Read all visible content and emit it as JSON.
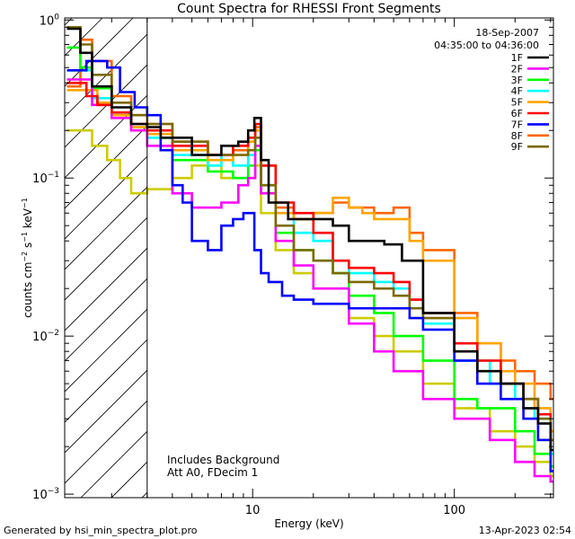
{
  "chart_data": {
    "type": "line",
    "title": "Count Spectra for RHESSI Front Segments",
    "xlabel": "Energy (keV)",
    "ylabel_parts": {
      "counts": "counts cm",
      "exp_cm": "−2",
      "s": " s",
      "exp_s": "−1",
      "kev": " keV",
      "exp_kev": "−1"
    },
    "xscale": "log",
    "yscale": "log",
    "xlim": [
      1.17,
      310
    ],
    "ylim": [
      0.00095,
      1.03
    ],
    "x_ticks": [
      {
        "value": 10,
        "label": "10"
      },
      {
        "value": 100,
        "label": "100"
      }
    ],
    "y_ticks": [
      {
        "value": 1,
        "base": "10",
        "exp": "0"
      },
      {
        "value": 0.1,
        "base": "10",
        "exp": "−1"
      },
      {
        "value": 0.01,
        "base": "10",
        "exp": "−2"
      },
      {
        "value": 0.001,
        "base": "10",
        "exp": "−3"
      }
    ],
    "date": "18-Sep-2007",
    "time_range": "04:35:00 to 04:36:00",
    "annotation_lines": [
      "Includes Background",
      "Att A0, FDecim 1"
    ],
    "excluded_region": {
      "xmin": 1.17,
      "xmax": 3.0,
      "style": "hatched"
    },
    "legend_position": "top-right",
    "series": [
      {
        "name": "1F",
        "color": "#000000",
        "points": [
          [
            1.2,
            0.88
          ],
          [
            1.35,
            0.88
          ],
          [
            1.4,
            0.62
          ],
          [
            1.6,
            0.38
          ],
          [
            2.0,
            0.28
          ],
          [
            2.5,
            0.22
          ],
          [
            3.0,
            0.21
          ],
          [
            3.5,
            0.18
          ],
          [
            5,
            0.14
          ],
          [
            7,
            0.16
          ],
          [
            8.5,
            0.17
          ],
          [
            9.5,
            0.2
          ],
          [
            10.2,
            0.24
          ],
          [
            11,
            0.13
          ],
          [
            12,
            0.07
          ],
          [
            15,
            0.055
          ],
          [
            20,
            0.055
          ],
          [
            25,
            0.05
          ],
          [
            30,
            0.04
          ],
          [
            40,
            0.04
          ],
          [
            45,
            0.038
          ],
          [
            55,
            0.03
          ],
          [
            70,
            0.014
          ],
          [
            100,
            0.008
          ],
          [
            130,
            0.006
          ],
          [
            170,
            0.005
          ],
          [
            220,
            0.0035
          ],
          [
            260,
            0.0028
          ],
          [
            300,
            0.0019
          ]
        ]
      },
      {
        "name": "2F",
        "color": "#ff00ff",
        "points": [
          [
            1.2,
            0.42
          ],
          [
            1.5,
            0.42
          ],
          [
            1.6,
            0.29
          ],
          [
            2.0,
            0.24
          ],
          [
            2.5,
            0.2
          ],
          [
            3.0,
            0.16
          ],
          [
            4,
            0.08
          ],
          [
            5,
            0.065
          ],
          [
            7,
            0.07
          ],
          [
            8.5,
            0.09
          ],
          [
            9.5,
            0.1
          ],
          [
            10.3,
            0.16
          ],
          [
            11,
            0.08
          ],
          [
            13,
            0.04
          ],
          [
            16,
            0.028
          ],
          [
            20,
            0.02
          ],
          [
            30,
            0.012
          ],
          [
            40,
            0.008
          ],
          [
            50,
            0.006
          ],
          [
            70,
            0.004
          ],
          [
            100,
            0.003
          ],
          [
            150,
            0.0022
          ],
          [
            200,
            0.0016
          ],
          [
            250,
            0.0013
          ],
          [
            300,
            0.0012
          ]
        ]
      },
      {
        "name": "3F",
        "color": "#00ff00",
        "points": [
          [
            1.2,
            0.67
          ],
          [
            1.35,
            0.67
          ],
          [
            1.4,
            0.5
          ],
          [
            1.6,
            0.37
          ],
          [
            2.0,
            0.25
          ],
          [
            2.5,
            0.2
          ],
          [
            3.0,
            0.18
          ],
          [
            4,
            0.13
          ],
          [
            6,
            0.11
          ],
          [
            8,
            0.1
          ],
          [
            9.5,
            0.12
          ],
          [
            10.3,
            0.15
          ],
          [
            11,
            0.08
          ],
          [
            13,
            0.045
          ],
          [
            16,
            0.035
          ],
          [
            20,
            0.03
          ],
          [
            25,
            0.025
          ],
          [
            30,
            0.018
          ],
          [
            40,
            0.014
          ],
          [
            50,
            0.01
          ],
          [
            70,
            0.007
          ],
          [
            100,
            0.004
          ],
          [
            130,
            0.0035
          ],
          [
            200,
            0.0025
          ],
          [
            250,
            0.0018
          ],
          [
            300,
            0.0015
          ]
        ]
      },
      {
        "name": "4F",
        "color": "#00ffff",
        "points": [
          [
            1.2,
            0.48
          ],
          [
            1.5,
            0.48
          ],
          [
            1.6,
            0.32
          ],
          [
            2.0,
            0.25
          ],
          [
            2.5,
            0.21
          ],
          [
            3.0,
            0.18
          ],
          [
            4,
            0.14
          ],
          [
            6,
            0.12
          ],
          [
            7,
            0.14
          ],
          [
            8,
            0.12
          ],
          [
            9.5,
            0.14
          ],
          [
            10.3,
            0.18
          ],
          [
            11,
            0.09
          ],
          [
            13,
            0.06
          ],
          [
            16,
            0.045
          ],
          [
            20,
            0.04
          ],
          [
            25,
            0.03
          ],
          [
            30,
            0.025
          ],
          [
            40,
            0.022
          ],
          [
            50,
            0.02
          ],
          [
            60,
            0.015
          ],
          [
            70,
            0.012
          ],
          [
            100,
            0.007
          ],
          [
            150,
            0.005
          ],
          [
            200,
            0.004
          ],
          [
            250,
            0.003
          ],
          [
            300,
            0.0018
          ]
        ]
      },
      {
        "name": "5F",
        "color": "#ffa500",
        "points": [
          [
            1.2,
            0.36
          ],
          [
            1.6,
            0.36
          ],
          [
            1.7,
            0.3
          ],
          [
            2.0,
            0.25
          ],
          [
            2.5,
            0.21
          ],
          [
            3.0,
            0.19
          ],
          [
            4,
            0.15
          ],
          [
            6,
            0.13
          ],
          [
            8,
            0.14
          ],
          [
            9.5,
            0.17
          ],
          [
            10.3,
            0.2
          ],
          [
            11,
            0.12
          ],
          [
            13,
            0.06
          ],
          [
            16,
            0.055
          ],
          [
            20,
            0.06
          ],
          [
            25,
            0.075
          ],
          [
            30,
            0.065
          ],
          [
            35,
            0.06
          ],
          [
            40,
            0.055
          ],
          [
            50,
            0.055
          ],
          [
            60,
            0.04
          ],
          [
            70,
            0.03
          ],
          [
            100,
            0.013
          ],
          [
            130,
            0.009
          ],
          [
            170,
            0.006
          ],
          [
            200,
            0.005
          ],
          [
            250,
            0.0035
          ],
          [
            300,
            0.0025
          ]
        ]
      },
      {
        "name": "6F",
        "color": "#ff0000",
        "points": [
          [
            1.2,
            0.4
          ],
          [
            1.4,
            0.4
          ],
          [
            1.5,
            0.33
          ],
          [
            1.7,
            0.29
          ],
          [
            2.0,
            0.26
          ],
          [
            2.5,
            0.22
          ],
          [
            3.0,
            0.2
          ],
          [
            4,
            0.16
          ],
          [
            6,
            0.14
          ],
          [
            8,
            0.16
          ],
          [
            9.5,
            0.18
          ],
          [
            10.3,
            0.22
          ],
          [
            11,
            0.12
          ],
          [
            13,
            0.07
          ],
          [
            16,
            0.06
          ],
          [
            20,
            0.045
          ],
          [
            25,
            0.03
          ],
          [
            30,
            0.027
          ],
          [
            40,
            0.025
          ],
          [
            50,
            0.022
          ],
          [
            60,
            0.017
          ],
          [
            70,
            0.014
          ],
          [
            100,
            0.009
          ],
          [
            130,
            0.007
          ],
          [
            170,
            0.005
          ],
          [
            220,
            0.004
          ],
          [
            260,
            0.0032
          ],
          [
            300,
            0.0022
          ]
        ]
      },
      {
        "name": "7F",
        "color": "#0000ff",
        "points": [
          [
            1.2,
            0.48
          ],
          [
            1.4,
            0.48
          ],
          [
            1.5,
            0.55
          ],
          [
            1.9,
            0.5
          ],
          [
            2.2,
            0.35
          ],
          [
            2.6,
            0.28
          ],
          [
            3.0,
            0.25
          ],
          [
            3.5,
            0.15
          ],
          [
            4,
            0.09
          ],
          [
            4.5,
            0.07
          ],
          [
            5,
            0.04
          ],
          [
            6,
            0.035
          ],
          [
            7,
            0.05
          ],
          [
            8,
            0.055
          ],
          [
            9,
            0.06
          ],
          [
            10.2,
            0.035
          ],
          [
            11,
            0.025
          ],
          [
            12,
            0.022
          ],
          [
            14,
            0.018
          ],
          [
            16,
            0.017
          ],
          [
            20,
            0.016
          ],
          [
            25,
            0.016
          ],
          [
            30,
            0.015
          ],
          [
            40,
            0.015
          ],
          [
            50,
            0.015
          ],
          [
            60,
            0.013
          ],
          [
            70,
            0.011
          ],
          [
            100,
            0.007
          ],
          [
            130,
            0.005
          ],
          [
            170,
            0.004
          ],
          [
            220,
            0.003
          ],
          [
            260,
            0.0022
          ],
          [
            300,
            0.0014
          ]
        ]
      },
      {
        "name": "8F",
        "color": "#ff6600",
        "points": [
          [
            1.2,
            0.38
          ],
          [
            1.35,
            0.38
          ],
          [
            1.4,
            0.75
          ],
          [
            1.6,
            0.55
          ],
          [
            2.0,
            0.33
          ],
          [
            2.5,
            0.25
          ],
          [
            3.0,
            0.22
          ],
          [
            4,
            0.17
          ],
          [
            6,
            0.14
          ],
          [
            8,
            0.15
          ],
          [
            9.5,
            0.17
          ],
          [
            10.3,
            0.21
          ],
          [
            11,
            0.12
          ],
          [
            13,
            0.065
          ],
          [
            16,
            0.055
          ],
          [
            20,
            0.06
          ],
          [
            25,
            0.07
          ],
          [
            30,
            0.065
          ],
          [
            40,
            0.06
          ],
          [
            50,
            0.065
          ],
          [
            60,
            0.045
          ],
          [
            70,
            0.035
          ],
          [
            100,
            0.014
          ],
          [
            130,
            0.009
          ],
          [
            170,
            0.007
          ],
          [
            200,
            0.006
          ],
          [
            250,
            0.005
          ],
          [
            300,
            0.004
          ]
        ]
      },
      {
        "name": "9F",
        "color": "#7a6a00",
        "points": [
          [
            1.2,
            0.9
          ],
          [
            1.35,
            0.9
          ],
          [
            1.4,
            0.7
          ],
          [
            1.6,
            0.45
          ],
          [
            2.0,
            0.3
          ],
          [
            2.5,
            0.25
          ],
          [
            3.0,
            0.22
          ],
          [
            4,
            0.17
          ],
          [
            6,
            0.14
          ],
          [
            8,
            0.14
          ],
          [
            9.5,
            0.15
          ],
          [
            10.3,
            0.18
          ],
          [
            11,
            0.09
          ],
          [
            13,
            0.05
          ],
          [
            16,
            0.035
          ],
          [
            20,
            0.03
          ],
          [
            25,
            0.025
          ],
          [
            30,
            0.022
          ],
          [
            40,
            0.02
          ],
          [
            50,
            0.018
          ],
          [
            60,
            0.015
          ],
          [
            70,
            0.013
          ],
          [
            100,
            0.008
          ],
          [
            130,
            0.006
          ],
          [
            170,
            0.005
          ],
          [
            220,
            0.004
          ],
          [
            260,
            0.003
          ],
          [
            300,
            0.0022
          ]
        ]
      },
      {
        "name": "",
        "color": "#cccc00",
        "points": [
          [
            1.2,
            0.2
          ],
          [
            1.5,
            0.2
          ],
          [
            1.6,
            0.16
          ],
          [
            1.9,
            0.13
          ],
          [
            2.2,
            0.1
          ],
          [
            2.5,
            0.08
          ],
          [
            3.0,
            0.085
          ],
          [
            4,
            0.1
          ],
          [
            5,
            0.12
          ],
          [
            7,
            0.1
          ],
          [
            9,
            0.1
          ],
          [
            10.3,
            0.12
          ],
          [
            11,
            0.06
          ],
          [
            13,
            0.035
          ],
          [
            16,
            0.025
          ],
          [
            20,
            0.02
          ],
          [
            30,
            0.013
          ],
          [
            40,
            0.01
          ],
          [
            50,
            0.008
          ],
          [
            70,
            0.005
          ],
          [
            100,
            0.0035
          ],
          [
            150,
            0.0025
          ],
          [
            200,
            0.002
          ],
          [
            250,
            0.0016
          ],
          [
            300,
            0.0013
          ]
        ]
      }
    ]
  },
  "footer": {
    "generator": "Generated by hsi_min_spectra_plot.pro",
    "timestamp": "13-Apr-2023 02:54"
  }
}
